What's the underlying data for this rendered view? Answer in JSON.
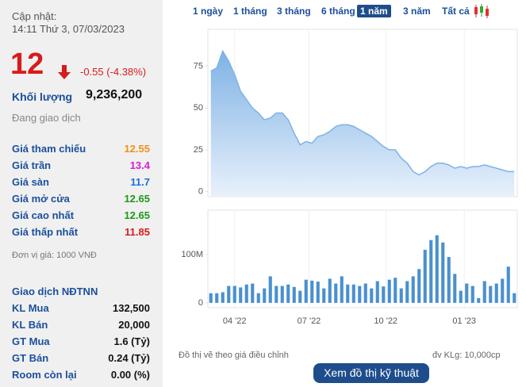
{
  "quote": {
    "updated_label": "Cập nhật:",
    "updated_time": "14:11 Thứ 3, 07/03/2023",
    "price": "12",
    "change": "-0.55 (-4.38%)",
    "volume_label": "Khối lượng",
    "volume": "9,236,200",
    "status": "Đang giao dịch",
    "prices": [
      {
        "label": "Giá tham chiếu",
        "value": "12.55",
        "color": "#f0901a"
      },
      {
        "label": "Giá trần",
        "value": "13.4",
        "color": "#d81bd8"
      },
      {
        "label": "Giá sàn",
        "value": "11.7",
        "color": "#1a6fd8"
      },
      {
        "label": "Giá mở cửa",
        "value": "12.65",
        "color": "#1a9a1a"
      },
      {
        "label": "Giá cao nhất",
        "value": "12.65",
        "color": "#1a9a1a"
      },
      {
        "label": "Giá thấp nhất",
        "value": "11.85",
        "color": "#d81b1b"
      }
    ],
    "unit_note": "Đơn vị giá: 1000 VNĐ",
    "foreign_title": "Giao dịch NĐTNN",
    "foreign": [
      {
        "label": "KL Mua",
        "value": "132,500"
      },
      {
        "label": "KL Bán",
        "value": "20,000"
      },
      {
        "label": "GT Mua",
        "value": "1.6 (Tỷ)"
      },
      {
        "label": "GT Bán",
        "value": "0.24 (Tỷ)"
      },
      {
        "label": "Room còn lại",
        "value": "0.00 (%)"
      }
    ]
  },
  "periods": [
    "1 ngày",
    "1 tháng",
    "3 tháng",
    "6 tháng",
    "1 năm",
    "3 năm",
    "Tất cả"
  ],
  "active_period": 4,
  "chart_data": [
    {
      "type": "area",
      "color": "#7fb2e5",
      "xlim": [
        -0.5,
        51.5
      ],
      "ylim": [
        -3,
        97
      ],
      "yticks": [
        0,
        25,
        50,
        75
      ],
      "values": [
        72,
        74,
        84,
        78,
        70,
        60,
        55,
        50,
        47,
        43,
        44,
        47,
        47,
        43,
        35,
        28,
        30,
        29,
        33,
        34,
        36,
        39,
        40,
        40,
        39,
        37,
        35,
        33,
        30,
        27,
        25,
        25,
        20,
        17,
        12,
        10,
        12,
        15,
        17,
        17,
        16,
        14,
        15,
        14,
        15,
        15,
        16,
        15,
        14,
        13,
        12,
        12
      ]
    },
    {
      "type": "bar",
      "color": "#4a90d0",
      "xlim": [
        -0.5,
        51.5
      ],
      "ylim": [
        -10000000,
        192000000
      ],
      "yticks": [
        0,
        {
          "value": 100000000,
          "label": "100M"
        }
      ],
      "xticks": [
        {
          "value": 4,
          "label": "04 '22"
        },
        {
          "value": 16.5,
          "label": "07 '22"
        },
        {
          "value": 29.4,
          "label": "10 '22"
        },
        {
          "value": 42.6,
          "label": "01 '23"
        }
      ],
      "values": [
        20000000,
        20000000,
        22000000,
        35000000,
        35000000,
        32000000,
        38000000,
        40000000,
        20000000,
        30000000,
        55000000,
        35000000,
        35000000,
        38000000,
        33000000,
        25000000,
        48000000,
        46000000,
        44000000,
        30000000,
        50000000,
        40000000,
        55000000,
        38000000,
        38000000,
        35000000,
        40000000,
        30000000,
        45000000,
        34000000,
        48000000,
        52000000,
        30000000,
        45000000,
        55000000,
        70000000,
        110000000,
        130000000,
        140000000,
        125000000,
        95000000,
        60000000,
        25000000,
        40000000,
        35000000,
        10000000,
        45000000,
        35000000,
        40000000,
        50000000,
        75000000,
        20000000
      ]
    }
  ],
  "footer": {
    "note": "Đồ thị vẽ theo giá điều chỉnh",
    "unit": "đv KLg: 10,000cp",
    "button": "Xem đồ thị kỹ thuật"
  }
}
